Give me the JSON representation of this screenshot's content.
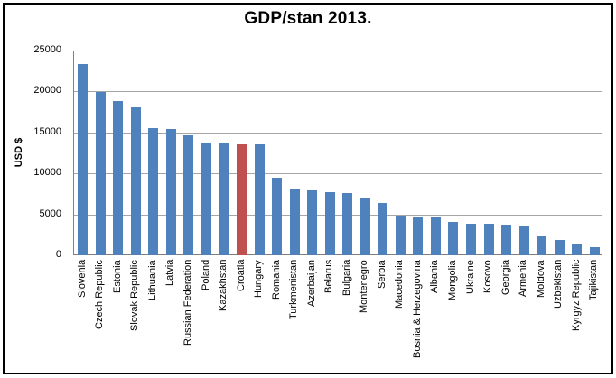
{
  "chart_data": {
    "type": "bar",
    "title": "GDP/stan 2013.",
    "xlabel": "",
    "ylabel": "USD $",
    "ylim": [
      0,
      25000
    ],
    "yticks": [
      0,
      5000,
      10000,
      15000,
      20000,
      25000
    ],
    "grid": true,
    "legend": false,
    "categories": [
      "Slovenia",
      "Czech Republic",
      "Estonia",
      "Slovak Republic",
      "Lithuania",
      "Latvia",
      "Russian Federation",
      "Poland",
      "Kazakhstan",
      "Croatia",
      "Hungary",
      "Romania",
      "Turkmenistan",
      "Azerbaijan",
      "Belarus",
      "Bulgaria",
      "Montenegro",
      "Serbia",
      "Macedonia",
      "Bosnia & Herzegovina",
      "Albania",
      "Mongolia",
      "Ukraine",
      "Kosovo",
      "Georgia",
      "Armenia",
      "Moldova",
      "Uzbekistan",
      "Kyrgyz Republic",
      "Tajikistan"
    ],
    "values": [
      23300,
      19900,
      18800,
      18100,
      15500,
      15400,
      14700,
      13700,
      13700,
      13600,
      13500,
      9500,
      8000,
      7900,
      7700,
      7600,
      7100,
      6400,
      4900,
      4700,
      4700,
      4100,
      3900,
      3900,
      3700,
      3600,
      2300,
      1900,
      1300,
      1000
    ],
    "highlight_category": "Croatia",
    "highlight_index": 9,
    "bar_color": "#4F81BD",
    "highlight_color": "#C0504D",
    "gridline_color": "#A6A6A6",
    "axis_color": "#808080"
  }
}
